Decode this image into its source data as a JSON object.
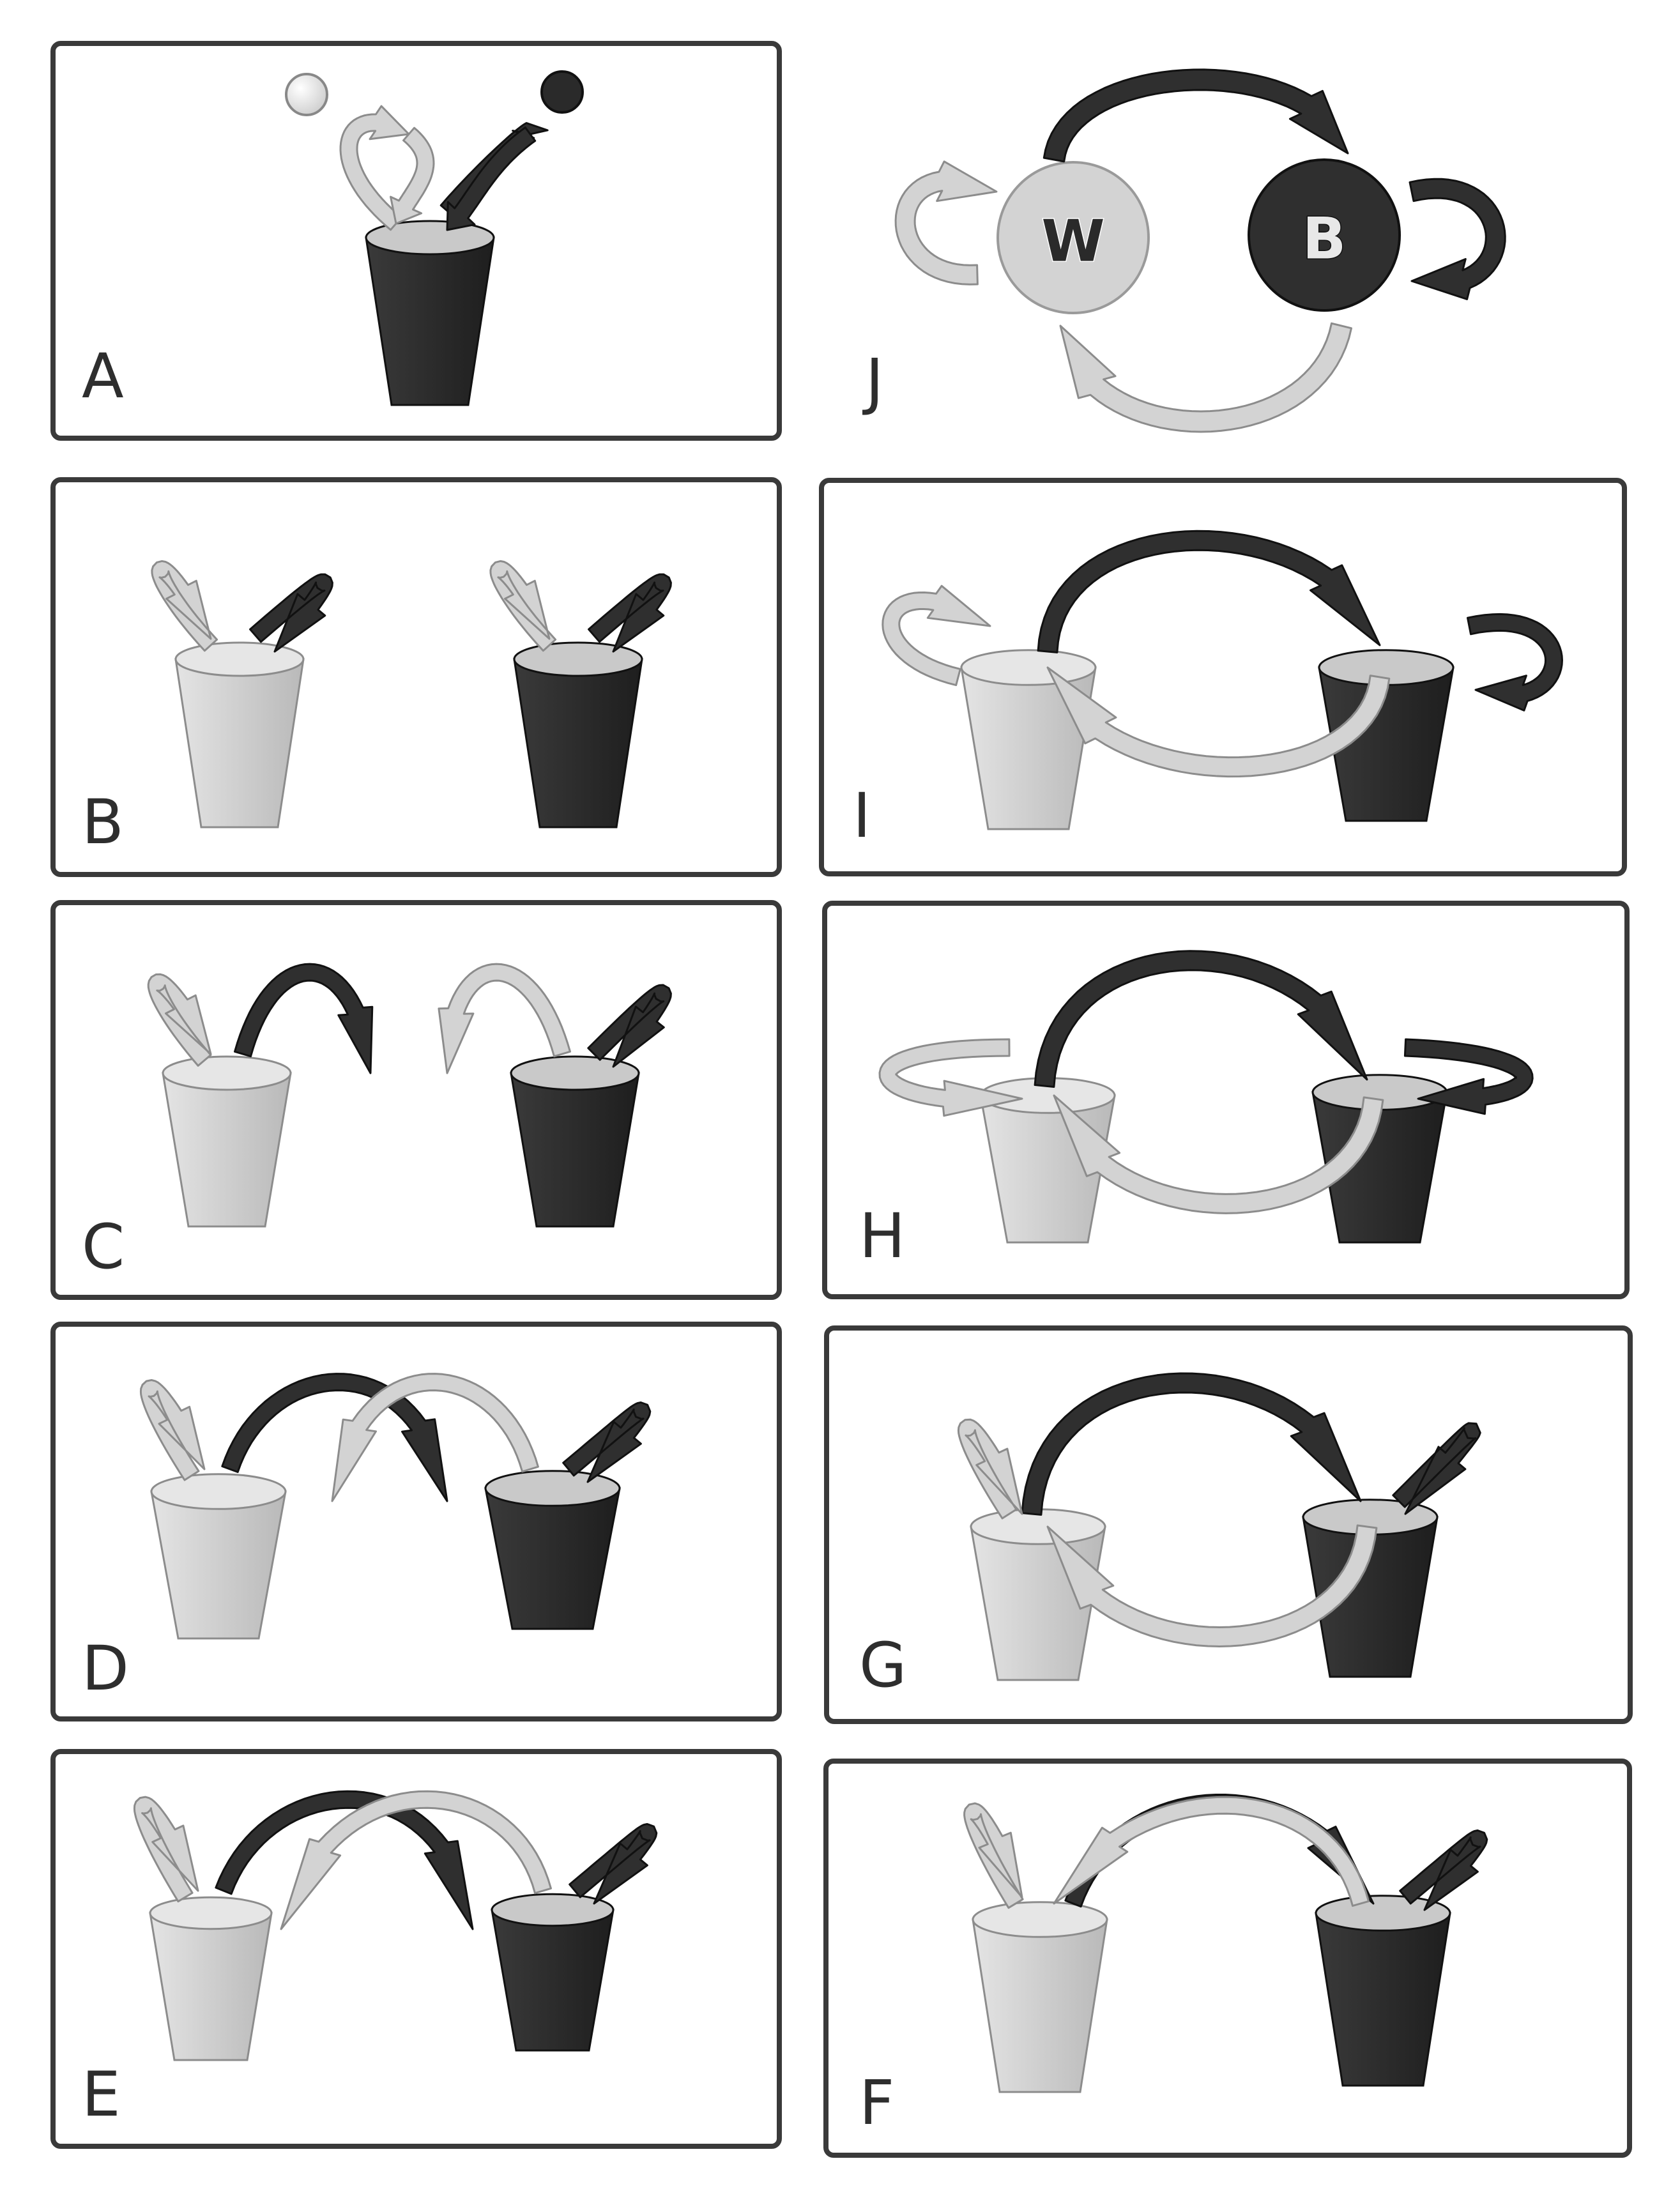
{
  "figure": {
    "panels": [
      {
        "label": "A"
      },
      {
        "label": "B"
      },
      {
        "label": "C"
      },
      {
        "label": "D"
      },
      {
        "label": "E"
      },
      {
        "label": "F"
      },
      {
        "label": "G"
      },
      {
        "label": "H"
      },
      {
        "label": "I"
      },
      {
        "label": "J"
      }
    ],
    "nodes": {
      "white": "W",
      "black": "B"
    },
    "colors": {
      "light_fill": "#d3d3d3",
      "light_stroke": "#8c8c8c",
      "dark_fill": "#2f2f2f",
      "dark_stroke": "#111111",
      "frame": "#3a3a3a"
    }
  }
}
